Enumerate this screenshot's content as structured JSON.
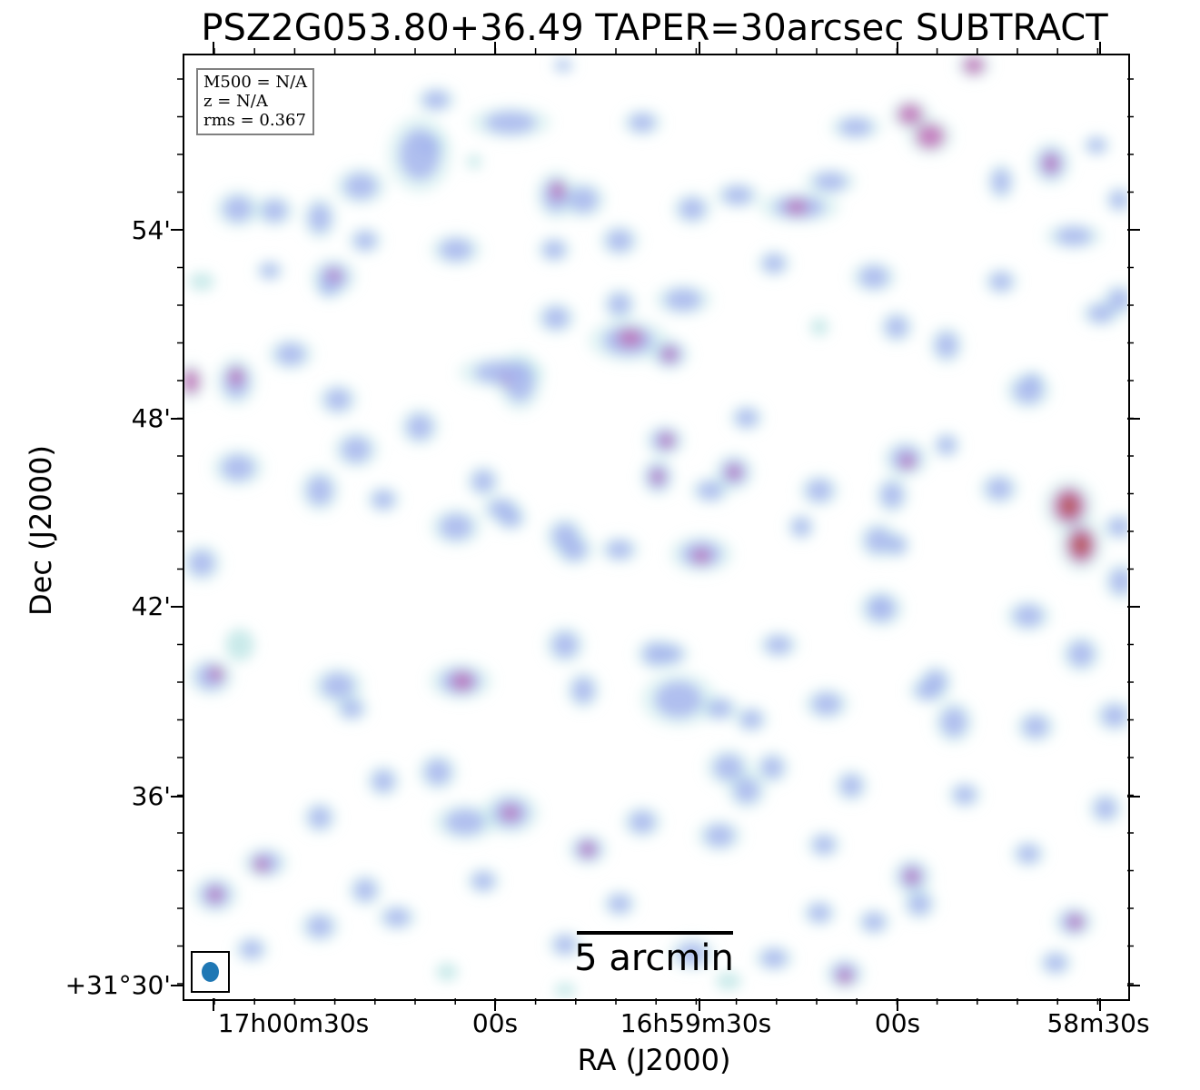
{
  "title": "PSZ2G053.80+36.49 TAPER=30arcsec SUBTRACT",
  "axes": {
    "xlabel": "RA (J2000)",
    "ylabel": "Dec (J2000)",
    "x_ticks": [
      "17h00m30s",
      "00s",
      "16h59m30s",
      "00s",
      "58m30s"
    ],
    "y_ticks": [
      "54'",
      "48'",
      "42'",
      "36'",
      "+31°30'"
    ]
  },
  "info": {
    "m500": "M500 = N/A",
    "z": "z = N/A",
    "rms": "rms = 0.367"
  },
  "scalebar": {
    "label": "5 arcmin"
  },
  "colors": {
    "beam": "#1f77b4",
    "low": "#bfe6e6",
    "mid": "#a7b6ef",
    "high": "#c06fb8",
    "peak": "#b85a4a"
  }
}
